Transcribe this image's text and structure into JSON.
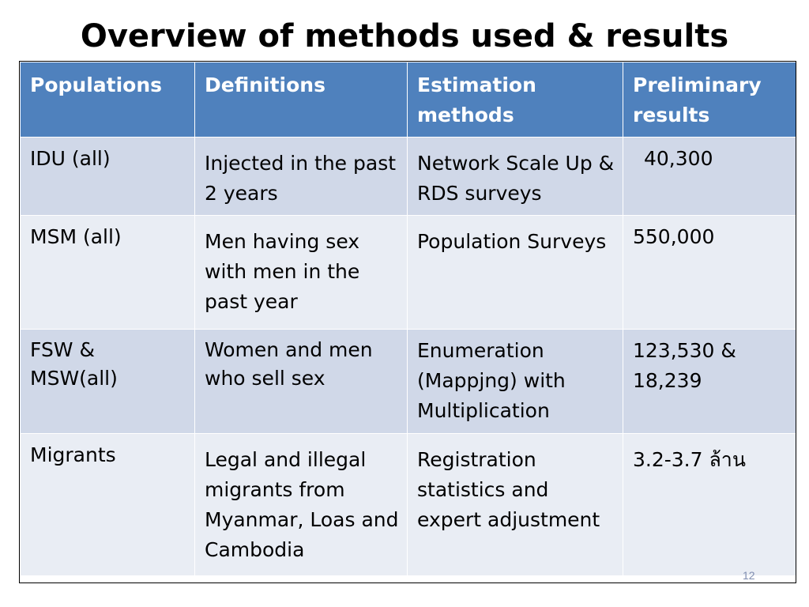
{
  "slide": {
    "title": "Overview of methods used & results",
    "page_number": "12"
  },
  "table": {
    "headers": [
      "Populations",
      "Definitions",
      "Estimation methods",
      "Preliminary results"
    ],
    "rows": [
      [
        "IDU (all)",
        "Injected in the past 2 years",
        "Network Scale Up & RDS surveys",
        "40,300"
      ],
      [
        "MSM (all)",
        "Men having sex with men in the past year",
        "Population Surveys",
        "550,000"
      ],
      [
        "FSW & MSW(all)",
        "Women and men who sell sex",
        "Enumeration (Mappjng) with Multiplication",
        "123,530 & 18,239"
      ],
      [
        "Migrants",
        "Legal and illegal migrants from Myanmar, Loas and Cambodia",
        "Registration statistics and expert adjustment",
        "3.2-3.7 ล้าน"
      ]
    ]
  },
  "colors": {
    "header_bg": "#4f81bd",
    "row_dark": "#d0d8e8",
    "row_light": "#e9edf4"
  }
}
